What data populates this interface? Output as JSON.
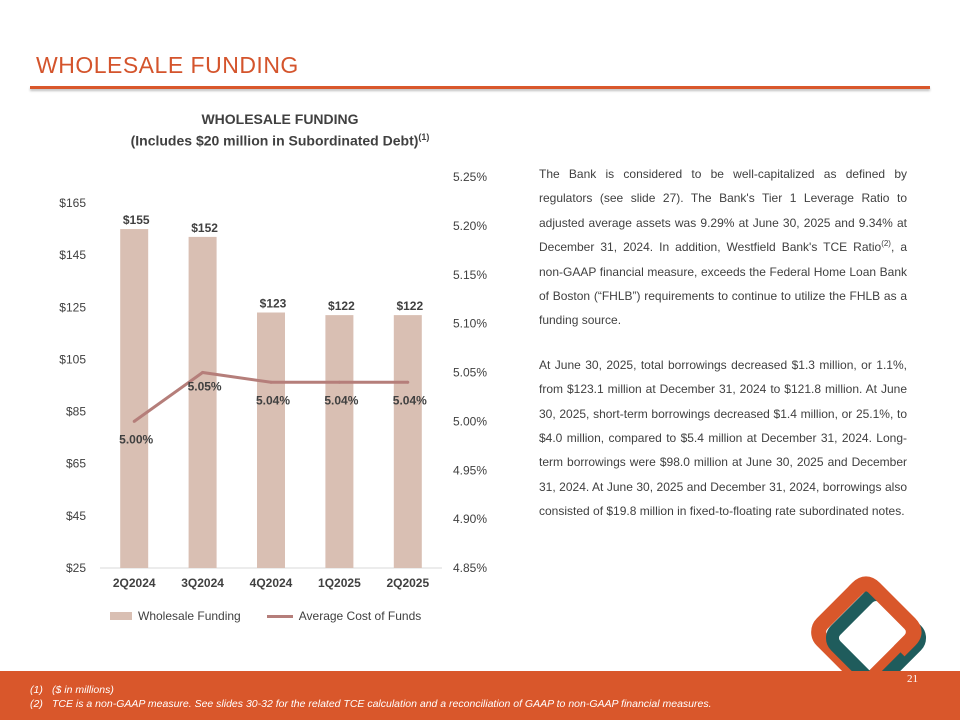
{
  "slide": {
    "title": "WHOLESALE FUNDING",
    "page_number": "21"
  },
  "chart_header": {
    "line1": "WHOLESALE FUNDING",
    "line2": "(Includes $20 million in Subordinated Debt)",
    "line2_sup": "(1)"
  },
  "chart_data": {
    "type": "bar+line",
    "title": "WHOLESALE FUNDING (Includes $20 million in Subordinated Debt)(1)",
    "categories": [
      "2Q2024",
      "3Q2024",
      "4Q2024",
      "1Q2025",
      "2Q2025"
    ],
    "series": [
      {
        "name": "Wholesale Funding",
        "type": "bar",
        "axis": "left",
        "values": [
          155,
          152,
          123,
          122,
          122
        ],
        "labels": [
          "$155",
          "$152",
          "$123",
          "$122",
          "$122"
        ],
        "color": "#d9bfb3"
      },
      {
        "name": "Average Cost of Funds",
        "type": "line",
        "axis": "right",
        "values": [
          5.0,
          5.05,
          5.04,
          5.04,
          5.04
        ],
        "labels": [
          "5.00%",
          "5.05%",
          "5.04%",
          "5.04%",
          "5.04%"
        ],
        "color": "#b57e7a"
      }
    ],
    "left_axis": {
      "min": 25,
      "max": 165,
      "ticks": [
        25,
        45,
        65,
        85,
        105,
        125,
        145,
        165
      ],
      "tick_labels": [
        "$25",
        "$45",
        "$65",
        "$85",
        "$105",
        "$125",
        "$145",
        "$165"
      ]
    },
    "right_axis": {
      "min": 4.85,
      "max": 5.25,
      "ticks": [
        4.85,
        4.9,
        4.95,
        5.0,
        5.05,
        5.1,
        5.15,
        5.2,
        5.25
      ],
      "tick_labels": [
        "4.85%",
        "4.90%",
        "4.95%",
        "5.00%",
        "5.05%",
        "5.10%",
        "5.15%",
        "5.20%",
        "5.25%"
      ]
    },
    "legend_position": "bottom",
    "grid": false
  },
  "legend": {
    "bar_label": "Wholesale Funding",
    "line_label": "Average Cost of Funds"
  },
  "body": {
    "para1_a": "The Bank is considered to be well-capitalized as defined by regulators (see slide 27). The Bank's Tier 1 Leverage Ratio to adjusted average assets was 9.29% at June 30, 2025 and 9.34% at December 31, 2024. In addition, Westfield Bank's TCE Ratio",
    "para1_sup": "(2)",
    "para1_b": ", a non-GAAP financial measure, exceeds the Federal Home Loan Bank of Boston (“FHLB”) requirements to continue to utilize the FHLB as a funding source.",
    "para2": "At June 30, 2025, total borrowings decreased $1.3 million, or 1.1%, from $123.1 million at December 31, 2024 to $121.8 million. At June 30, 2025, short-term borrowings decreased $1.4 million, or 25.1%, to $4.0 million, compared to $5.4 million at December 31, 2024. Long-term borrowings were $98.0 million at June 30, 2025 and December 31, 2024. At June 30, 2025 and December 31, 2024, borrowings also consisted of $19.8 million in fixed-to-floating rate subordinated notes."
  },
  "footnotes": [
    {
      "num": "(1)",
      "text": "($ in millions)"
    },
    {
      "num": "(2)",
      "text": "TCE is a non-GAAP measure.  See slides 30-32 for the related TCE calculation and a reconciliation of GAAP to non-GAAP financial measures."
    }
  ],
  "colors": {
    "accent": "#d9572b",
    "bar": "#d9bfb3",
    "line": "#b57e7a",
    "logo_orange": "#d9572b",
    "logo_teal": "#1f5c5c"
  },
  "logo_icon": "diamond-logo-icon"
}
